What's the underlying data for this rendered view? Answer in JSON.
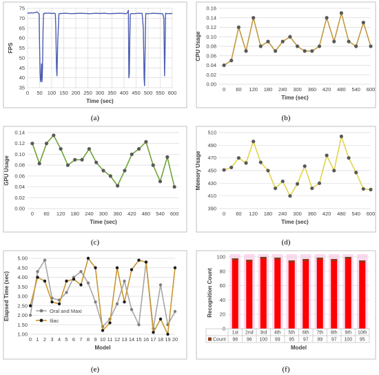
{
  "chart_data": [
    {
      "type": "line",
      "panel": "a",
      "caption": "(a)",
      "xlabel": "Time (sec)",
      "ylabel": "FPS",
      "xlim": [
        0,
        600
      ],
      "ylim": [
        35,
        75
      ],
      "xticks": [
        0,
        50,
        100,
        150,
        200,
        250,
        300,
        350,
        400,
        450,
        500,
        550,
        600
      ],
      "yticks": [
        35,
        40,
        45,
        50,
        55,
        60,
        65,
        70,
        75
      ],
      "color": "#4a5cb0",
      "x": [
        0,
        5,
        10,
        15,
        20,
        25,
        30,
        35,
        40,
        45,
        48,
        50,
        52,
        54,
        56,
        58,
        60,
        62,
        64,
        66,
        68,
        70,
        72,
        80,
        90,
        100,
        110,
        115,
        117,
        120,
        122,
        125,
        130,
        140,
        160,
        180,
        200,
        220,
        240,
        260,
        280,
        300,
        320,
        340,
        360,
        380,
        400,
        410,
        415,
        418,
        420,
        422,
        424,
        426,
        430,
        440,
        460,
        475,
        480,
        483,
        485,
        488,
        490,
        500,
        520,
        540,
        560,
        565,
        568,
        570,
        572,
        575,
        580,
        600
      ],
      "y": [
        72.5,
        72.7,
        72.5,
        72.8,
        72.6,
        72.7,
        72.8,
        73,
        73.2,
        72.5,
        72,
        55,
        42,
        38,
        40,
        47,
        38,
        45,
        62,
        72,
        72.5,
        72.3,
        72.6,
        72.5,
        72.6,
        72.4,
        72.5,
        72.3,
        65,
        45,
        41,
        58,
        72.3,
        72.4,
        72.5,
        72.3,
        72.4,
        72.5,
        72.4,
        72.3,
        72.5,
        72.4,
        72.5,
        72.3,
        72.4,
        72.5,
        72.4,
        72.3,
        73,
        74,
        40,
        42,
        60,
        72,
        72.4,
        72.3,
        72.5,
        72.4,
        65,
        40,
        36,
        58,
        72.4,
        72.3,
        72.5,
        72.4,
        72.3,
        70,
        41,
        52,
        72.5,
        72.4,
        72.3,
        72.4
      ]
    },
    {
      "type": "line",
      "panel": "b",
      "caption": "(b)",
      "xlabel": "Time (sec)",
      "ylabel": "CPU Usage",
      "xlim": [
        -20,
        600
      ],
      "ylim": [
        0,
        0.16
      ],
      "xticks": [
        0,
        60,
        120,
        180,
        240,
        300,
        360,
        420,
        480,
        540,
        600
      ],
      "yticks": [
        0,
        0.02,
        0.04,
        0.06,
        0.08,
        0.1,
        0.12,
        0.14,
        0.16
      ],
      "color": "#c19a3e",
      "marker_color": "#595959",
      "x": [
        0,
        30,
        60,
        90,
        120,
        150,
        180,
        210,
        240,
        270,
        300,
        330,
        360,
        390,
        420,
        450,
        480,
        510,
        540,
        570,
        600
      ],
      "y": [
        0.04,
        0.05,
        0.12,
        0.07,
        0.14,
        0.08,
        0.09,
        0.07,
        0.09,
        0.1,
        0.08,
        0.07,
        0.07,
        0.08,
        0.14,
        0.09,
        0.15,
        0.09,
        0.08,
        0.13,
        0.08
      ]
    },
    {
      "type": "line",
      "panel": "c",
      "caption": "(c)",
      "xlabel": "Time (sec)",
      "ylabel": "GPU Usage",
      "xlim": [
        -20,
        620
      ],
      "ylim": [
        0,
        0.14
      ],
      "xticks": [
        0,
        60,
        120,
        180,
        240,
        300,
        360,
        420,
        480,
        540,
        600
      ],
      "yticks": [
        0,
        0.02,
        0.04,
        0.06,
        0.08,
        0.1,
        0.12,
        0.14
      ],
      "color": "#70a33a",
      "marker_color": "#595959",
      "x": [
        0,
        30,
        60,
        90,
        120,
        150,
        180,
        210,
        240,
        270,
        300,
        330,
        360,
        390,
        420,
        450,
        480,
        510,
        540,
        570,
        600
      ],
      "y": [
        0.12,
        0.083,
        0.12,
        0.135,
        0.11,
        0.08,
        0.09,
        0.09,
        0.11,
        0.085,
        0.07,
        0.06,
        0.042,
        0.07,
        0.1,
        0.11,
        0.123,
        0.08,
        0.05,
        0.095,
        0.04
      ]
    },
    {
      "type": "line",
      "panel": "d",
      "caption": "(d)",
      "xlabel": "Time (sec)",
      "ylabel": "Memory Usage",
      "xlim": [
        -20,
        600
      ],
      "ylim": [
        390,
        510
      ],
      "xticks": [
        0,
        60,
        120,
        180,
        240,
        300,
        360,
        420,
        480,
        540,
        600
      ],
      "yticks": [
        390,
        410,
        430,
        450,
        470,
        490,
        510
      ],
      "color": "#e0d34a",
      "marker_color": "#595959",
      "x": [
        0,
        30,
        60,
        90,
        120,
        150,
        180,
        210,
        240,
        270,
        300,
        330,
        360,
        390,
        420,
        450,
        480,
        510,
        540,
        570,
        600
      ],
      "y": [
        451,
        455,
        470,
        462,
        496,
        463,
        450,
        422,
        433,
        410,
        429,
        457,
        422,
        430,
        474,
        450,
        504,
        470,
        447,
        421,
        420
      ]
    },
    {
      "type": "line",
      "panel": "e",
      "caption": "(e)",
      "xlabel": "Model",
      "ylabel": "Elapsed Time (sec)",
      "xlim": [
        0,
        20
      ],
      "ylim": [
        1.0,
        5.0
      ],
      "xticks": [
        0,
        1,
        2,
        3,
        4,
        5,
        6,
        7,
        8,
        9,
        10,
        11,
        12,
        13,
        14,
        15,
        16,
        17,
        18,
        19,
        20
      ],
      "yticks": [
        1.0,
        1.5,
        2.0,
        2.5,
        3.0,
        3.5,
        4.0,
        4.5,
        5.0
      ],
      "series": [
        {
          "name": "Oral and Maxi",
          "color": "#a6a6a6",
          "marker_color": "#7f7f7f",
          "values": [
            2.0,
            4.3,
            4.9,
            2.9,
            2.8,
            3.2,
            4.0,
            4.3,
            3.7,
            2.7,
            1.4,
            1.8,
            2.6,
            3.8,
            2.3,
            1.5,
            4.8,
            1.3,
            3.6,
            1.5,
            2.2
          ]
        },
        {
          "name": "Iliac",
          "color": "#c8962e",
          "marker_color": "#1a1a1a",
          "values": [
            2.5,
            4.0,
            3.8,
            2.7,
            2.6,
            3.8,
            3.9,
            3.6,
            5.0,
            4.5,
            1.2,
            1.6,
            4.5,
            2.7,
            4.4,
            4.9,
            4.8,
            1.1,
            1.8,
            1.0,
            4.5
          ]
        }
      ]
    },
    {
      "type": "bar",
      "panel": "f",
      "caption": "(f)",
      "xlabel": "Model",
      "ylabel": "Recognition Count",
      "ylim": [
        0,
        100
      ],
      "yticks": [
        0,
        20,
        40,
        60,
        80,
        100
      ],
      "categories": [
        "1st",
        "2nd",
        "3rd",
        "4th",
        "5th",
        "6th",
        "7th",
        "8th",
        "9th",
        "10th"
      ],
      "series": [
        {
          "name": "Count",
          "color": "#ff0000",
          "edge_color": "#8b3a1a",
          "values": [
            98,
            96,
            100,
            99,
            95,
            97,
            99,
            97,
            100,
            95
          ]
        }
      ]
    }
  ]
}
